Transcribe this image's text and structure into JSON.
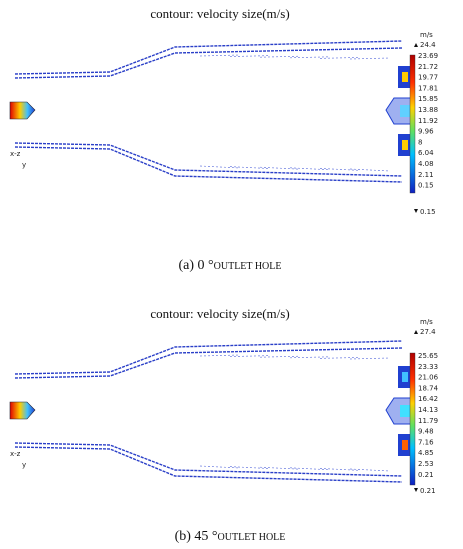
{
  "panels": [
    {
      "title": "contour: velocity size(m/s)",
      "unit": "m/s",
      "max": "24.4",
      "ticks": [
        "23.69",
        "21.72",
        "19.77",
        "17.81",
        "15.85",
        "13.88",
        "11.92",
        "9.96",
        "8",
        "6.04",
        "4.08",
        "2.11",
        "0.15"
      ],
      "min": "0.15",
      "axis_x": "x-z",
      "axis_y": "y",
      "caption_label": "(a) 0 °",
      "caption_text": "OUTLET HOLE"
    },
    {
      "title": "contour: velocity size(m/s)",
      "unit": "m/s",
      "max": "27.4",
      "ticks": [
        "25.65",
        "23.33",
        "21.06",
        "18.74",
        "16.42",
        "14.13",
        "11.79",
        "9.48",
        "7.16",
        "4.85",
        "2.53",
        "0.21"
      ],
      "min": "0.21",
      "axis_x": "x-z",
      "axis_y": "y",
      "caption_label": "(b) 45 °",
      "caption_text": "OUTLET HOLE"
    }
  ]
}
